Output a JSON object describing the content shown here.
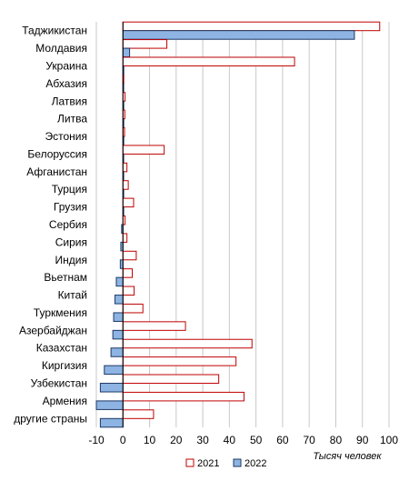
{
  "chart_data": {
    "type": "bar",
    "orientation": "horizontal",
    "xlabel": "Тысяч человек",
    "xlim": [
      -10,
      100
    ],
    "xticks": [
      -10,
      0,
      10,
      20,
      30,
      40,
      50,
      60,
      70,
      80,
      90,
      100
    ],
    "grid": "vertical",
    "legend": "bottom",
    "categories": [
      "Таджикистан",
      "Молдавия",
      "Украина",
      "Абхазия",
      "Латвия",
      "Литва",
      "Эстония",
      "Белоруссия",
      "Афганистан",
      "Турция",
      "Грузия",
      "Сербия",
      "Сирия",
      "Индия",
      "Вьетнам",
      "Китай",
      "Туркмения",
      "Азербайджан",
      "Казахстан",
      "Киргизия",
      "Узбекистан",
      "Армения",
      "другие страны"
    ],
    "series": [
      {
        "name": "2021",
        "fill": "#ffffff",
        "stroke": "#c00000",
        "values": [
          96.5,
          16.5,
          64.5,
          0.3,
          0.8,
          0.7,
          0.6,
          15.5,
          1.5,
          2,
          4,
          0.8,
          1.5,
          5,
          3.5,
          4.2,
          7.5,
          23.5,
          48.5,
          42.5,
          36,
          45.5,
          11.5
        ]
      },
      {
        "name": "2022",
        "fill": "#8db4e2",
        "stroke": "#1f3864",
        "values": [
          87,
          2.5,
          0.3,
          0.2,
          0.3,
          0.3,
          0.3,
          0.1,
          0.1,
          0.1,
          0,
          -0.5,
          -0.8,
          -1,
          -2.5,
          -3,
          -3.5,
          -3.8,
          -4.5,
          -7,
          -8.5,
          -10,
          -8.5
        ]
      }
    ]
  }
}
